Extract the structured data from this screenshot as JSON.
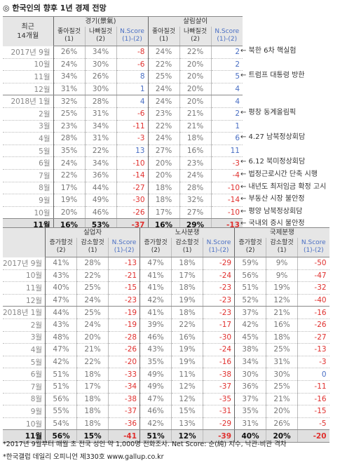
{
  "title": "◎  한국인의 향후 1년 경제 전망",
  "table1": {
    "corner": [
      "최근",
      "14개월"
    ],
    "groups": [
      "경기(景氣)",
      "살림살이"
    ],
    "subheads": [
      [
        "좋아질것",
        "(1)"
      ],
      [
        "나빠질것",
        "(2)"
      ],
      [
        "N.Score",
        "(1)-(2)"
      ],
      [
        "좋아질것",
        "(1)"
      ],
      [
        "나빠질것",
        "(2)"
      ],
      [
        "N.Score",
        "(1)-(2)"
      ]
    ],
    "rows": [
      [
        "2017년 9월",
        "26%",
        "34%",
        "-8",
        "24%",
        "22%",
        "2"
      ],
      [
        "10월",
        "24%",
        "30%",
        "-6",
        "22%",
        "20%",
        "2"
      ],
      [
        "11월",
        "34%",
        "26%",
        "8",
        "25%",
        "20%",
        "5"
      ],
      [
        "12월",
        "31%",
        "30%",
        "1",
        "24%",
        "20%",
        "4"
      ],
      [
        "2018년 1월",
        "32%",
        "28%",
        "4",
        "24%",
        "20%",
        "4"
      ],
      [
        "2월",
        "25%",
        "31%",
        "-6",
        "23%",
        "21%",
        "2"
      ],
      [
        "3월",
        "23%",
        "34%",
        "-11",
        "22%",
        "21%",
        "1"
      ],
      [
        "4월",
        "28%",
        "31%",
        "-3",
        "24%",
        "18%",
        "6"
      ],
      [
        "5월",
        "35%",
        "22%",
        "13",
        "27%",
        "16%",
        "11"
      ],
      [
        "6월",
        "24%",
        "34%",
        "-10",
        "20%",
        "23%",
        "-3"
      ],
      [
        "7월",
        "22%",
        "36%",
        "-14",
        "20%",
        "24%",
        "-4"
      ],
      [
        "8월",
        "17%",
        "44%",
        "-27",
        "18%",
        "28%",
        "-10"
      ],
      [
        "9월",
        "19%",
        "49%",
        "-30",
        "18%",
        "32%",
        "-14"
      ],
      [
        "10월",
        "20%",
        "46%",
        "-26",
        "17%",
        "27%",
        "-10"
      ],
      [
        "11월",
        "16%",
        "53%",
        "-37",
        "16%",
        "29%",
        "-13"
      ]
    ]
  },
  "annotations": [
    {
      "row": 0,
      "text": "← 북한 6차 핵실험"
    },
    {
      "row": 2,
      "text": "← 트럼프 대통령 방한"
    },
    {
      "row": 5,
      "text": "← 평창 동계올림픽"
    },
    {
      "row": 7,
      "text": "← 4.27 남북정상회담"
    },
    {
      "row": 9,
      "text": "← 6.12 북미정상회담"
    },
    {
      "row": 10,
      "text": "← 법정근로시간 단축 시행"
    },
    {
      "row": 11,
      "text": "← 내년도 최저임금 확정 고시"
    },
    {
      "row": 12,
      "text": "← 부동산 시장 불안정"
    },
    {
      "row": 13,
      "text": "← 평양 남북정상회담"
    },
    {
      "row": 14,
      "text": "← 국내외 증시 불안정"
    }
  ],
  "table2": {
    "groups": [
      "실업자",
      "노사분쟁",
      "국제분쟁"
    ],
    "subheads": [
      [
        "증가할것",
        "(2)"
      ],
      [
        "감소할것",
        "(1)"
      ],
      [
        "N.Score",
        "(1)-(2)"
      ],
      [
        "증가할것",
        "(2)"
      ],
      [
        "감소할것",
        "(1)"
      ],
      [
        "N.Score",
        "(1)-(2)"
      ],
      [
        "증가할것",
        "(2)"
      ],
      [
        "감소할것",
        "(1)"
      ],
      [
        "N.Score",
        "(1)-(2)"
      ]
    ],
    "rows": [
      [
        "2017년 9월",
        "41%",
        "28%",
        "-13",
        "47%",
        "18%",
        "-29",
        "59%",
        "9%",
        "-50"
      ],
      [
        "10월",
        "43%",
        "22%",
        "-21",
        "41%",
        "17%",
        "-24",
        "56%",
        "9%",
        "-47"
      ],
      [
        "11월",
        "40%",
        "25%",
        "-15",
        "41%",
        "18%",
        "-23",
        "51%",
        "19%",
        "-32"
      ],
      [
        "12월",
        "47%",
        "24%",
        "-23",
        "42%",
        "19%",
        "-23",
        "52%",
        "12%",
        "-40"
      ],
      [
        "2018년 1월",
        "44%",
        "25%",
        "-19",
        "41%",
        "18%",
        "-23",
        "37%",
        "21%",
        "-16"
      ],
      [
        "2월",
        "43%",
        "24%",
        "-19",
        "39%",
        "22%",
        "-17",
        "42%",
        "16%",
        "-26"
      ],
      [
        "3월",
        "48%",
        "20%",
        "-28",
        "46%",
        "16%",
        "-30",
        "45%",
        "18%",
        "-27"
      ],
      [
        "4월",
        "47%",
        "21%",
        "-26",
        "43%",
        "19%",
        "-24",
        "38%",
        "25%",
        "-13"
      ],
      [
        "5월",
        "42%",
        "22%",
        "-20",
        "35%",
        "19%",
        "-16",
        "34%",
        "31%",
        "-3"
      ],
      [
        "6월",
        "51%",
        "18%",
        "-33",
        "49%",
        "11%",
        "-38",
        "30%",
        "30%",
        "0"
      ],
      [
        "7월",
        "51%",
        "17%",
        "-34",
        "49%",
        "12%",
        "-37",
        "36%",
        "25%",
        "-11"
      ],
      [
        "8월",
        "56%",
        "18%",
        "-38",
        "47%",
        "12%",
        "-35",
        "37%",
        "21%",
        "-16"
      ],
      [
        "9월",
        "55%",
        "18%",
        "-37",
        "46%",
        "15%",
        "-31",
        "35%",
        "20%",
        "-15"
      ],
      [
        "10월",
        "54%",
        "18%",
        "-36",
        "42%",
        "13%",
        "-29",
        "31%",
        "26%",
        "-5"
      ],
      [
        "11월",
        "56%",
        "15%",
        "-41",
        "51%",
        "12%",
        "-39",
        "40%",
        "20%",
        "-20"
      ]
    ]
  },
  "footnotes": [
    "*2017년 9월부터 매월 초 전국 성인 약 1,000명 전화조사. Net Score: 순(純) 지수, 낙관-비관 격차",
    "*한국갤럽 데일리 오피니언 제330호 www.gallup.co.kr"
  ]
}
